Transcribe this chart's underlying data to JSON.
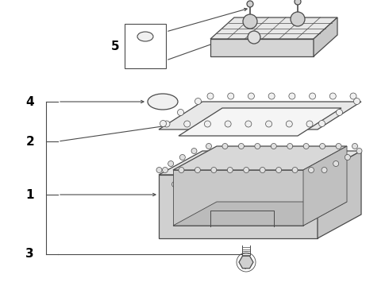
{
  "bg_color": "#ffffff",
  "line_color": "#4a4a4a",
  "label_color": "#000000",
  "figsize": [
    4.9,
    3.6
  ],
  "dpi": 100
}
